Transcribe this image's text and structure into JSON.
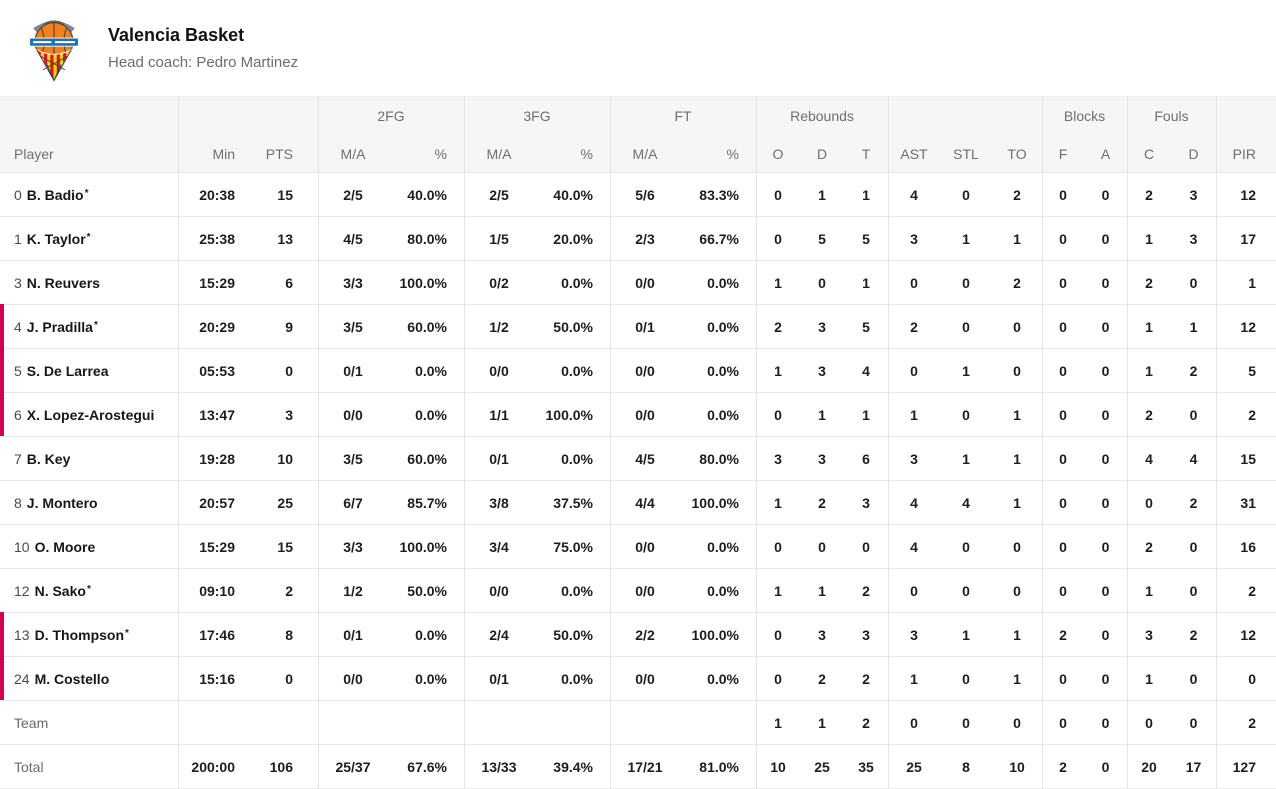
{
  "team": {
    "name": "Valencia Basket",
    "coach_line": "Head coach: Pedro Martinez"
  },
  "colors": {
    "on_court_marker": "#d0054f",
    "logo_ball": "#f0811c",
    "logo_ribbon": "#1e72b8",
    "logo_net_red": "#dd1420",
    "logo_net_yellow": "#fcd209",
    "header_bg": "#f6f6f6"
  },
  "table": {
    "headers": {
      "player": "Player",
      "min": "Min",
      "pts": "PTS",
      "ma": "M/A",
      "pct": "%",
      "group_2fg": "2FG",
      "group_3fg": "3FG",
      "group_ft": "FT",
      "group_rebounds": "Rebounds",
      "group_blocks": "Blocks",
      "group_fouls": "Fouls",
      "reb_o": "O",
      "reb_d": "D",
      "reb_t": "T",
      "ast": "AST",
      "stl": "STL",
      "to": "TO",
      "blk_f": "F",
      "blk_a": "A",
      "foul_c": "C",
      "foul_d": "D",
      "pir": "PIR"
    },
    "starter_mark": "*",
    "rows": [
      {
        "num": "0",
        "name": "B. Badio",
        "starter": true,
        "on_court": false,
        "min": "20:38",
        "pts": "15",
        "fg2_ma": "2/5",
        "fg2_pct": "40.0%",
        "fg3_ma": "2/5",
        "fg3_pct": "40.0%",
        "ft_ma": "5/6",
        "ft_pct": "83.3%",
        "reb_o": "0",
        "reb_d": "1",
        "reb_t": "1",
        "ast": "4",
        "stl": "0",
        "to": "2",
        "blk_f": "0",
        "blk_a": "0",
        "foul_c": "2",
        "foul_d": "3",
        "pir": "12"
      },
      {
        "num": "1",
        "name": "K. Taylor",
        "starter": true,
        "on_court": false,
        "min": "25:38",
        "pts": "13",
        "fg2_ma": "4/5",
        "fg2_pct": "80.0%",
        "fg3_ma": "1/5",
        "fg3_pct": "20.0%",
        "ft_ma": "2/3",
        "ft_pct": "66.7%",
        "reb_o": "0",
        "reb_d": "5",
        "reb_t": "5",
        "ast": "3",
        "stl": "1",
        "to": "1",
        "blk_f": "0",
        "blk_a": "0",
        "foul_c": "1",
        "foul_d": "3",
        "pir": "17"
      },
      {
        "num": "3",
        "name": "N. Reuvers",
        "starter": false,
        "on_court": false,
        "min": "15:29",
        "pts": "6",
        "fg2_ma": "3/3",
        "fg2_pct": "100.0%",
        "fg3_ma": "0/2",
        "fg3_pct": "0.0%",
        "ft_ma": "0/0",
        "ft_pct": "0.0%",
        "reb_o": "1",
        "reb_d": "0",
        "reb_t": "1",
        "ast": "0",
        "stl": "0",
        "to": "2",
        "blk_f": "0",
        "blk_a": "0",
        "foul_c": "2",
        "foul_d": "0",
        "pir": "1"
      },
      {
        "num": "4",
        "name": "J. Pradilla",
        "starter": true,
        "on_court": true,
        "min": "20:29",
        "pts": "9",
        "fg2_ma": "3/5",
        "fg2_pct": "60.0%",
        "fg3_ma": "1/2",
        "fg3_pct": "50.0%",
        "ft_ma": "0/1",
        "ft_pct": "0.0%",
        "reb_o": "2",
        "reb_d": "3",
        "reb_t": "5",
        "ast": "2",
        "stl": "0",
        "to": "0",
        "blk_f": "0",
        "blk_a": "0",
        "foul_c": "1",
        "foul_d": "1",
        "pir": "12"
      },
      {
        "num": "5",
        "name": "S. De Larrea",
        "starter": false,
        "on_court": true,
        "min": "05:53",
        "pts": "0",
        "fg2_ma": "0/1",
        "fg2_pct": "0.0%",
        "fg3_ma": "0/0",
        "fg3_pct": "0.0%",
        "ft_ma": "0/0",
        "ft_pct": "0.0%",
        "reb_o": "1",
        "reb_d": "3",
        "reb_t": "4",
        "ast": "0",
        "stl": "1",
        "to": "0",
        "blk_f": "0",
        "blk_a": "0",
        "foul_c": "1",
        "foul_d": "2",
        "pir": "5"
      },
      {
        "num": "6",
        "name": "X. Lopez-Arostegui",
        "starter": false,
        "on_court": true,
        "min": "13:47",
        "pts": "3",
        "fg2_ma": "0/0",
        "fg2_pct": "0.0%",
        "fg3_ma": "1/1",
        "fg3_pct": "100.0%",
        "ft_ma": "0/0",
        "ft_pct": "0.0%",
        "reb_o": "0",
        "reb_d": "1",
        "reb_t": "1",
        "ast": "1",
        "stl": "0",
        "to": "1",
        "blk_f": "0",
        "blk_a": "0",
        "foul_c": "2",
        "foul_d": "0",
        "pir": "2"
      },
      {
        "num": "7",
        "name": "B. Key",
        "starter": false,
        "on_court": false,
        "min": "19:28",
        "pts": "10",
        "fg2_ma": "3/5",
        "fg2_pct": "60.0%",
        "fg3_ma": "0/1",
        "fg3_pct": "0.0%",
        "ft_ma": "4/5",
        "ft_pct": "80.0%",
        "reb_o": "3",
        "reb_d": "3",
        "reb_t": "6",
        "ast": "3",
        "stl": "1",
        "to": "1",
        "blk_f": "0",
        "blk_a": "0",
        "foul_c": "4",
        "foul_d": "4",
        "pir": "15"
      },
      {
        "num": "8",
        "name": "J. Montero",
        "starter": false,
        "on_court": false,
        "min": "20:57",
        "pts": "25",
        "fg2_ma": "6/7",
        "fg2_pct": "85.7%",
        "fg3_ma": "3/8",
        "fg3_pct": "37.5%",
        "ft_ma": "4/4",
        "ft_pct": "100.0%",
        "reb_o": "1",
        "reb_d": "2",
        "reb_t": "3",
        "ast": "4",
        "stl": "4",
        "to": "1",
        "blk_f": "0",
        "blk_a": "0",
        "foul_c": "0",
        "foul_d": "2",
        "pir": "31"
      },
      {
        "num": "10",
        "name": "O. Moore",
        "starter": false,
        "on_court": false,
        "min": "15:29",
        "pts": "15",
        "fg2_ma": "3/3",
        "fg2_pct": "100.0%",
        "fg3_ma": "3/4",
        "fg3_pct": "75.0%",
        "ft_ma": "0/0",
        "ft_pct": "0.0%",
        "reb_o": "0",
        "reb_d": "0",
        "reb_t": "0",
        "ast": "4",
        "stl": "0",
        "to": "0",
        "blk_f": "0",
        "blk_a": "0",
        "foul_c": "2",
        "foul_d": "0",
        "pir": "16"
      },
      {
        "num": "12",
        "name": "N. Sako",
        "starter": true,
        "on_court": false,
        "min": "09:10",
        "pts": "2",
        "fg2_ma": "1/2",
        "fg2_pct": "50.0%",
        "fg3_ma": "0/0",
        "fg3_pct": "0.0%",
        "ft_ma": "0/0",
        "ft_pct": "0.0%",
        "reb_o": "1",
        "reb_d": "1",
        "reb_t": "2",
        "ast": "0",
        "stl": "0",
        "to": "0",
        "blk_f": "0",
        "blk_a": "0",
        "foul_c": "1",
        "foul_d": "0",
        "pir": "2"
      },
      {
        "num": "13",
        "name": "D. Thompson",
        "starter": true,
        "on_court": true,
        "min": "17:46",
        "pts": "8",
        "fg2_ma": "0/1",
        "fg2_pct": "0.0%",
        "fg3_ma": "2/4",
        "fg3_pct": "50.0%",
        "ft_ma": "2/2",
        "ft_pct": "100.0%",
        "reb_o": "0",
        "reb_d": "3",
        "reb_t": "3",
        "ast": "3",
        "stl": "1",
        "to": "1",
        "blk_f": "2",
        "blk_a": "0",
        "foul_c": "3",
        "foul_d": "2",
        "pir": "12"
      },
      {
        "num": "24",
        "name": "M. Costello",
        "starter": false,
        "on_court": true,
        "min": "15:16",
        "pts": "0",
        "fg2_ma": "0/0",
        "fg2_pct": "0.0%",
        "fg3_ma": "0/1",
        "fg3_pct": "0.0%",
        "ft_ma": "0/0",
        "ft_pct": "0.0%",
        "reb_o": "0",
        "reb_d": "2",
        "reb_t": "2",
        "ast": "1",
        "stl": "0",
        "to": "1",
        "blk_f": "0",
        "blk_a": "0",
        "foul_c": "1",
        "foul_d": "0",
        "pir": "0"
      },
      {
        "label": "Team",
        "min": "",
        "pts": "",
        "fg2_ma": "",
        "fg2_pct": "",
        "fg3_ma": "",
        "fg3_pct": "",
        "ft_ma": "",
        "ft_pct": "",
        "reb_o": "1",
        "reb_d": "1",
        "reb_t": "2",
        "ast": "0",
        "stl": "0",
        "to": "0",
        "blk_f": "0",
        "blk_a": "0",
        "foul_c": "0",
        "foul_d": "0",
        "pir": "2"
      },
      {
        "label": "Total",
        "min": "200:00",
        "pts": "106",
        "fg2_ma": "25/37",
        "fg2_pct": "67.6%",
        "fg3_ma": "13/33",
        "fg3_pct": "39.4%",
        "ft_ma": "17/21",
        "ft_pct": "81.0%",
        "reb_o": "10",
        "reb_d": "25",
        "reb_t": "35",
        "ast": "25",
        "stl": "8",
        "to": "10",
        "blk_f": "2",
        "blk_a": "0",
        "foul_c": "20",
        "foul_d": "17",
        "pir": "127"
      }
    ]
  }
}
